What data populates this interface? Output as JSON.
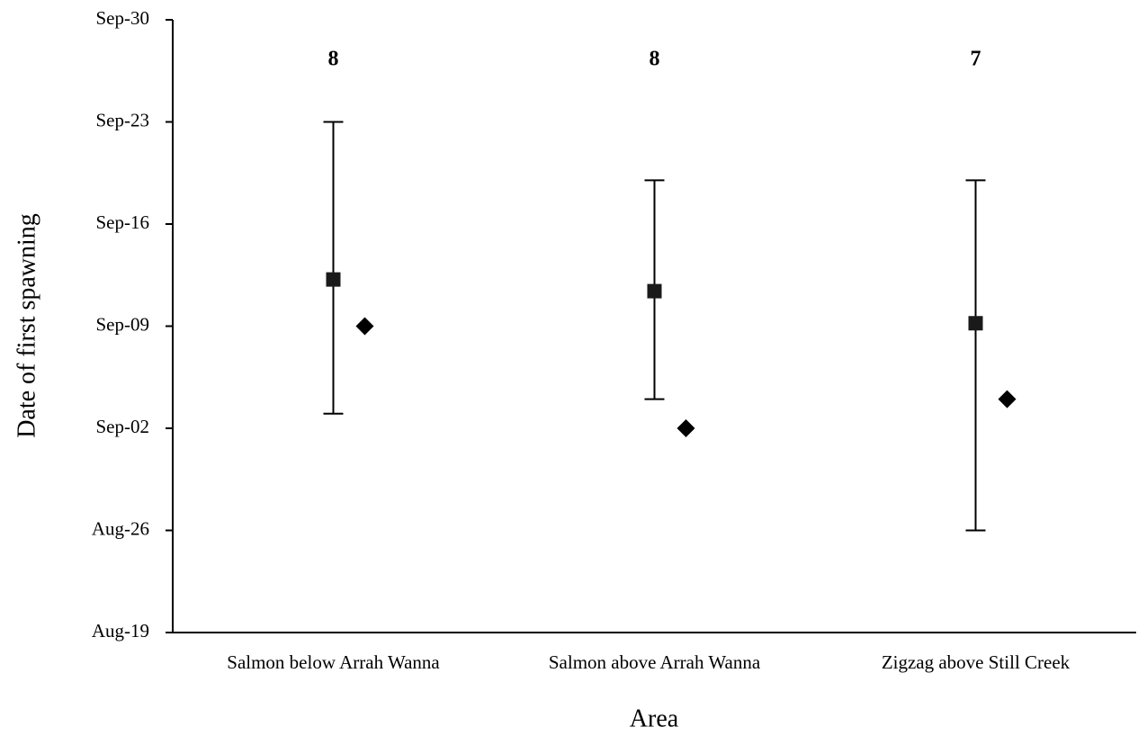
{
  "chart_data": {
    "type": "range-scatter",
    "y_label": "Date of first spawning",
    "x_label": "Area",
    "categories": [
      "Salmon below Arrah Wanna",
      "Salmon above Arrah Wanna",
      "Zigzag above Still Creek"
    ],
    "count_labels": [
      8,
      8,
      7
    ],
    "series": [
      {
        "color": "#1a1a1a",
        "marker": "square",
        "values": [
          255.2,
          254.4,
          252.2
        ],
        "low": [
          246,
          247,
          238
        ],
        "high": [
          266,
          262,
          262
        ]
      },
      {
        "color": "#000000",
        "marker": "diamond",
        "values": [
          252,
          245,
          247
        ]
      }
    ],
    "ylim": [
      231,
      273
    ],
    "yticks": [
      {
        "value": 231,
        "label": "Aug-19"
      },
      {
        "value": 238,
        "label": "Aug-26"
      },
      {
        "value": 245,
        "label": "Sep-02"
      },
      {
        "value": 252,
        "label": "Sep-09"
      },
      {
        "value": 259,
        "label": "Sep-16"
      },
      {
        "value": 266,
        "label": "Sep-23"
      },
      {
        "value": 273,
        "label": "Sep-30"
      }
    ],
    "grid": false
  }
}
